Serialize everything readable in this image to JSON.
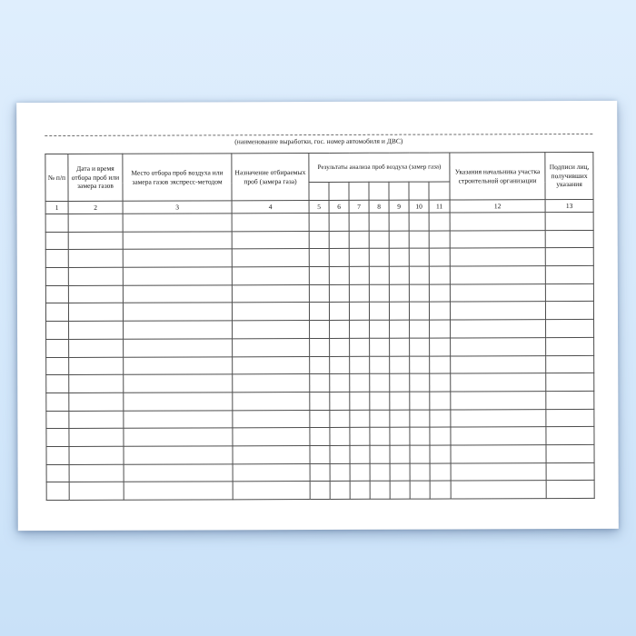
{
  "colors": {
    "background_top": "#dfeefd",
    "background_mid": "#d6e9fb",
    "background_bottom": "#c9e1f8",
    "paper": "#ffffff",
    "table_border": "#4d4d4d",
    "text": "#141414"
  },
  "document": {
    "caption": "(наименование выработки, гос. номер автомобиля и ДВС)",
    "table": {
      "header_columns_left": [
        {
          "number": "1",
          "label": "№ п/п"
        },
        {
          "number": "2",
          "label": "Дата и время отбора проб или замера газов"
        },
        {
          "number": "3",
          "label": "Место отбора проб воздуха или замера газов экспресс-методом"
        },
        {
          "number": "4",
          "label": "Назначение отбираемых проб (замера газа)"
        }
      ],
      "group_header": {
        "label": "Результаты анализа проб воздуха (замер газа)",
        "subcolumn_count": 7
      },
      "header_columns_right": [
        {
          "number": "12",
          "label": "Указания начальника участка строительной организации"
        },
        {
          "number": "13",
          "label": "Подписи лиц, получивших указания"
        }
      ],
      "column_numbers": [
        "1",
        "2",
        "3",
        "4",
        "5",
        "6",
        "7",
        "8",
        "9",
        "10",
        "11",
        "12",
        "13"
      ],
      "empty_body_rows": 16
    }
  }
}
